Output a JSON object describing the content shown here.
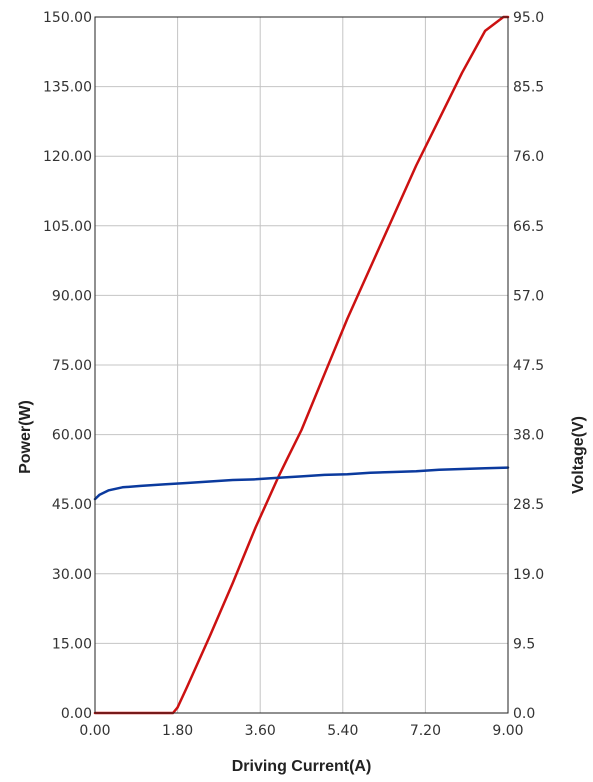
{
  "chart_data": {
    "type": "line",
    "xlabel": "Driving Current(A)",
    "ylabel": "Power(W)",
    "y2label": "Voltage(V)",
    "xlim": [
      0,
      9
    ],
    "ylim": [
      0,
      150
    ],
    "y2lim": [
      0,
      95
    ],
    "grid": true,
    "x_ticks": [
      "0.00",
      "1.80",
      "3.60",
      "5.40",
      "7.20",
      "9.00"
    ],
    "y_ticks": [
      "0.00",
      "15.00",
      "30.00",
      "45.00",
      "60.00",
      "75.00",
      "90.00",
      "105.00",
      "120.00",
      "135.00",
      "150.00"
    ],
    "y2_ticks": [
      "0.0",
      "9.5",
      "19.0",
      "28.5",
      "38.0",
      "47.5",
      "57.0",
      "66.5",
      "76.0",
      "85.5",
      "95.0"
    ],
    "series": [
      {
        "axis": "left",
        "color": "#cc1111",
        "x": [
          0,
          0.5,
          1.0,
          1.5,
          1.7,
          1.8,
          2.0,
          2.5,
          3.0,
          3.5,
          4.0,
          4.2,
          4.5,
          5.0,
          5.5,
          6.0,
          6.5,
          7.0,
          7.5,
          8.0,
          8.5,
          8.9,
          9.0
        ],
        "y": [
          0,
          0,
          0,
          0,
          0,
          1.2,
          5.5,
          16.5,
          28,
          40,
          51,
          55,
          61,
          73,
          85,
          96,
          107,
          118,
          128,
          138,
          147,
          150,
          150
        ]
      },
      {
        "axis": "right",
        "color": "#0b3a9e",
        "x": [
          0,
          0.1,
          0.3,
          0.6,
          1.0,
          1.5,
          2.0,
          2.5,
          3.0,
          3.5,
          4.0,
          4.5,
          5.0,
          5.5,
          6.0,
          6.5,
          7.0,
          7.5,
          8.0,
          8.5,
          9.0
        ],
        "y": [
          29.2,
          29.8,
          30.4,
          30.8,
          31.0,
          31.2,
          31.4,
          31.6,
          31.8,
          31.9,
          32.1,
          32.3,
          32.5,
          32.6,
          32.8,
          32.9,
          33.0,
          33.2,
          33.3,
          33.4,
          33.5
        ]
      }
    ]
  }
}
